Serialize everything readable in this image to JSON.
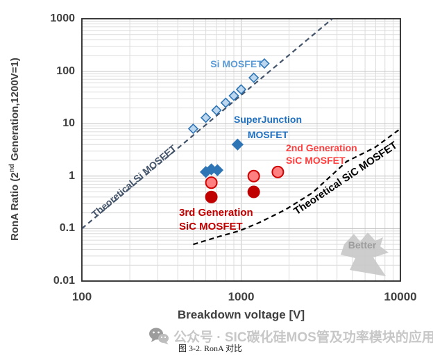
{
  "watermark": {
    "icon": "wechat-icon",
    "text": "公众号 · SIC碳化硅MOS管及功率模块的应用"
  },
  "caption": {
    "text": "图 3-2. RonA 对比"
  },
  "labels": {
    "si": "Si MOSFET",
    "sj_line1": "SuperJunction",
    "sj_line2": "MOSFET",
    "gen2_line1": "2nd Generation",
    "gen2_line2": "SiC MOSFET",
    "gen3_line1": "3rd Generation",
    "gen3_line2": "SiC MOSFET",
    "theoretical_si": "Theoretical Si MOSFET",
    "theoretical_sic": "Theoretical SiC MOSFET",
    "better": "Better"
  },
  "chart_data": {
    "type": "scatter",
    "title": "",
    "xlabel": "Breakdown voltage [V]",
    "ylabel": "RonA Ratio (2nd Generation,1200V=1)",
    "ylabel_pre": "RonA Ratio (2",
    "ylabel_sup": "nd",
    "ylabel_post": " Generation,1200V=1)",
    "x_scale": "log",
    "y_scale": "log",
    "xlim": [
      100,
      10000
    ],
    "ylim": [
      0.01,
      1000
    ],
    "x_ticks": [
      "100",
      "1000",
      "10000"
    ],
    "x_tick_values": [
      100,
      1000,
      10000
    ],
    "y_ticks": [
      "1000",
      "100",
      "10",
      "1",
      "0.1",
      "0.01"
    ],
    "y_tick_values": [
      1000,
      100,
      10,
      1,
      0.1,
      0.01
    ],
    "grid": "log major and minor gridlines on",
    "legend_position": "none (inline text annotations)",
    "colors": {
      "si_fill": "#BDD7EE",
      "si_stroke": "#2E75B6",
      "sj_fill": "#2E75B6",
      "gen2_fill": "#FF8080",
      "gen2_stroke": "#D00000",
      "gen3_fill": "#C00000",
      "theo_si": "#44546A",
      "theo_sic": "#000000",
      "grid_minor": "#DCDCDC",
      "grid_major": "#C2C2C2",
      "axis": "#262626",
      "better_arrow": "#C8C8C8"
    },
    "series": [
      {
        "name": "Si MOSFET",
        "marker": "diamond",
        "size": 6.5,
        "fill": "#BDD7EE",
        "stroke": "#2E75B6",
        "points": [
          [
            500,
            8
          ],
          [
            600,
            13
          ],
          [
            700,
            18
          ],
          [
            800,
            25
          ],
          [
            900,
            34
          ],
          [
            1000,
            45
          ],
          [
            1200,
            75
          ],
          [
            1400,
            140
          ]
        ]
      },
      {
        "name": "SuperJunction MOSFET",
        "marker": "diamond",
        "size": 7.5,
        "fill": "#2E75B6",
        "stroke": "#2E75B6",
        "points": [
          [
            600,
            1.2
          ],
          [
            650,
            1.35
          ],
          [
            710,
            1.3
          ],
          [
            950,
            4
          ]
        ]
      },
      {
        "name": "2nd Generation SiC MOSFET",
        "marker": "circle",
        "size": 8,
        "fill": "#FF8080",
        "stroke": "#D00000",
        "points": [
          [
            650,
            0.75
          ],
          [
            1200,
            1.0
          ],
          [
            1700,
            1.2
          ]
        ]
      },
      {
        "name": "3rd Generation SiC MOSFET",
        "marker": "circle",
        "size": 8,
        "fill": "#C00000",
        "stroke": "#C00000",
        "points": [
          [
            650,
            0.4
          ],
          [
            1200,
            0.5
          ]
        ]
      }
    ],
    "lines": [
      {
        "name": "Theoretical Si MOSFET",
        "style": "dashed",
        "color": "#44546A",
        "points": [
          [
            100,
            0.1
          ],
          [
            3740,
            1000
          ]
        ]
      },
      {
        "name": "Theoretical SiC MOSFET",
        "style": "dashed",
        "color": "#000000",
        "points": [
          [
            500,
            0.05
          ],
          [
            720,
            0.07
          ],
          [
            970,
            0.09
          ],
          [
            1300,
            0.13
          ],
          [
            1900,
            0.23
          ],
          [
            2800,
            0.48
          ],
          [
            4600,
            1.9
          ],
          [
            6900,
            3.5
          ],
          [
            10000,
            8
          ]
        ]
      }
    ]
  }
}
